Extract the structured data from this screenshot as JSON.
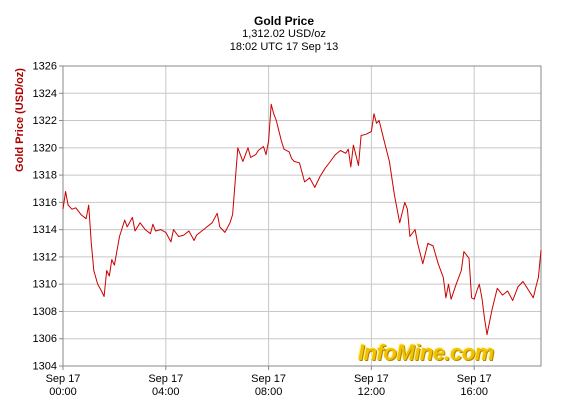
{
  "chart_data": {
    "type": "line",
    "title": "Gold Price",
    "subtitle_lines": [
      "1,312.02 USD/oz",
      "18:02 UTC 17 Sep '13"
    ],
    "ylabel": "Gold Price (USD/oz)",
    "xlabel": "",
    "ylim": [
      1304,
      1326
    ],
    "yticks": [
      1304,
      1306,
      1308,
      1310,
      1312,
      1314,
      1316,
      1318,
      1320,
      1322,
      1324,
      1326
    ],
    "xlim_hours": [
      0,
      18.6
    ],
    "xticks": [
      {
        "hour": 0,
        "date": "Sep 17",
        "time": "00:00"
      },
      {
        "hour": 4,
        "date": "Sep 17",
        "time": "04:00"
      },
      {
        "hour": 8,
        "date": "Sep 17",
        "time": "08:00"
      },
      {
        "hour": 12,
        "date": "Sep 17",
        "time": "12:00"
      },
      {
        "hour": 16,
        "date": "Sep 17",
        "time": "16:00"
      }
    ],
    "grid": true,
    "line_color": "#cc0000",
    "series": [
      {
        "x": [
          0.0,
          0.1,
          0.2,
          0.35,
          0.5,
          0.7,
          0.9,
          1.0,
          1.1,
          1.2,
          1.35,
          1.5,
          1.6,
          1.7,
          1.8,
          1.9,
          2.0,
          2.2,
          2.4,
          2.5,
          2.7,
          2.8,
          3.0,
          3.2,
          3.4,
          3.5,
          3.6,
          3.8,
          4.0,
          4.2,
          4.3,
          4.5,
          4.7,
          4.9,
          5.1,
          5.2,
          5.4,
          5.6,
          5.8,
          6.0,
          6.1,
          6.3,
          6.5,
          6.6,
          6.8,
          7.0,
          7.1,
          7.2,
          7.3,
          7.5,
          7.6,
          7.8,
          7.9,
          8.0,
          8.1,
          8.2,
          8.3,
          8.5,
          8.6,
          8.8,
          8.9,
          9.0,
          9.2,
          9.4,
          9.6,
          9.8,
          10.0,
          10.2,
          10.4,
          10.6,
          10.8,
          11.0,
          11.1,
          11.2,
          11.3,
          11.5,
          11.6,
          11.8,
          12.0,
          12.1,
          12.2,
          12.3,
          12.5,
          12.7,
          12.9,
          13.1,
          13.3,
          13.4,
          13.5,
          13.7,
          13.8,
          14.0,
          14.2,
          14.4,
          14.6,
          14.8,
          14.9,
          15.0,
          15.1,
          15.3,
          15.5,
          15.6,
          15.8,
          15.9,
          16.0,
          16.1,
          16.2,
          16.3,
          16.4,
          16.5,
          16.7,
          16.9,
          17.1,
          17.3,
          17.5,
          17.7,
          17.9,
          18.1,
          18.3,
          18.4,
          18.5,
          18.6
        ],
        "values": [
          1315.5,
          1316.8,
          1315.8,
          1315.5,
          1315.6,
          1315.1,
          1314.8,
          1315.8,
          1313.0,
          1311.0,
          1310.0,
          1309.5,
          1309.1,
          1311.0,
          1310.6,
          1311.8,
          1311.4,
          1313.5,
          1314.7,
          1314.2,
          1314.9,
          1313.9,
          1314.5,
          1314.0,
          1313.7,
          1314.4,
          1313.9,
          1314.0,
          1313.8,
          1313.1,
          1314.0,
          1313.5,
          1313.6,
          1313.9,
          1313.2,
          1313.6,
          1313.9,
          1314.2,
          1314.5,
          1315.2,
          1314.2,
          1313.8,
          1314.5,
          1315.1,
          1320.0,
          1319.0,
          1319.5,
          1320.0,
          1319.3,
          1319.5,
          1319.8,
          1320.1,
          1319.5,
          1320.5,
          1323.2,
          1322.5,
          1322.0,
          1320.5,
          1319.9,
          1319.7,
          1319.2,
          1319.0,
          1318.9,
          1317.5,
          1317.8,
          1317.1,
          1317.9,
          1318.5,
          1319.0,
          1319.5,
          1319.8,
          1319.6,
          1319.9,
          1318.6,
          1320.2,
          1318.7,
          1320.9,
          1321.0,
          1321.2,
          1322.5,
          1321.8,
          1322.0,
          1320.5,
          1319.0,
          1316.5,
          1314.5,
          1316.0,
          1315.5,
          1313.5,
          1314.0,
          1313.0,
          1311.5,
          1313.0,
          1312.8,
          1311.5,
          1310.5,
          1309.0,
          1310.0,
          1308.9,
          1310.0,
          1311.0,
          1312.4,
          1311.9,
          1309.0,
          1308.9,
          1309.5,
          1310.0,
          1309.0,
          1307.5,
          1306.3,
          1308.2,
          1309.7,
          1309.2,
          1309.5,
          1308.8,
          1309.8,
          1310.2,
          1309.6,
          1309.0,
          1309.8,
          1310.5,
          1312.5
        ]
      }
    ],
    "legend": "none"
  },
  "watermark": "InfoMine.com"
}
